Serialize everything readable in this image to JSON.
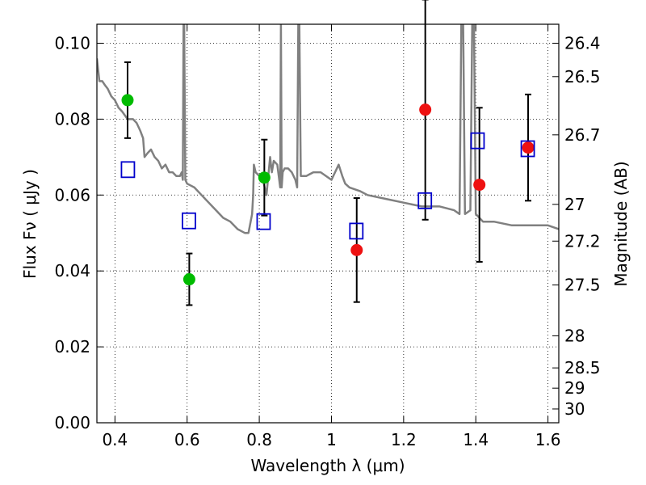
{
  "chart_data": {
    "type": "scatter",
    "xlabel": "Wavelength  λ (μm)",
    "ylabel_left": "Flux  Fν  ( μJy )",
    "ylabel_right": "Magnitude (AB)",
    "xlim": [
      0.35,
      1.63
    ],
    "ylim": [
      0.0,
      0.105
    ],
    "grid": true,
    "x_ticks": [
      0.4,
      0.6,
      0.8,
      1.0,
      1.2,
      1.4,
      1.6
    ],
    "x_tick_labels": [
      "0.4",
      "0.6",
      "0.8",
      "1",
      "1.2",
      "1.4",
      "1.6"
    ],
    "y_ticks": [
      0.0,
      0.02,
      0.04,
      0.06,
      0.08,
      0.1
    ],
    "y_tick_labels": [
      "0.00",
      "0.02",
      "0.04",
      "0.06",
      "0.08",
      "0.10"
    ],
    "right_ticks": [
      {
        "mag": 26.4,
        "label": "26.4"
      },
      {
        "mag": 26.5,
        "label": "26.5"
      },
      {
        "mag": 26.7,
        "label": "26.7"
      },
      {
        "mag": 27.0,
        "label": "27"
      },
      {
        "mag": 27.2,
        "label": "27.2"
      },
      {
        "mag": 27.5,
        "label": "27.5"
      },
      {
        "mag": 28.0,
        "label": "28"
      },
      {
        "mag": 28.5,
        "label": "28.5"
      },
      {
        "mag": 29.0,
        "label": "29"
      },
      {
        "mag": 30.0,
        "label": "30"
      }
    ],
    "series": [
      {
        "marker": "circle",
        "color": "#00bb00",
        "points": [
          {
            "x": 0.435,
            "y": 0.085,
            "err": 0.01
          },
          {
            "x": 0.606,
            "y": 0.0378,
            "err": 0.0068
          },
          {
            "x": 0.814,
            "y": 0.0646,
            "err": 0.01
          }
        ]
      },
      {
        "marker": "circle",
        "color": "#ee1111",
        "points": [
          {
            "x": 1.07,
            "y": 0.0455,
            "err": 0.0137
          },
          {
            "x": 1.26,
            "y": 0.0825,
            "err": 0.029
          },
          {
            "x": 1.41,
            "y": 0.0627,
            "err": 0.0203
          },
          {
            "x": 1.545,
            "y": 0.0725,
            "err": 0.014
          }
        ]
      },
      {
        "marker": "square-open",
        "color": "#0000cc",
        "points": [
          {
            "x": 0.436,
            "y": 0.0667
          },
          {
            "x": 0.605,
            "y": 0.0532
          },
          {
            "x": 0.812,
            "y": 0.053
          },
          {
            "x": 1.069,
            "y": 0.0505
          },
          {
            "x": 1.259,
            "y": 0.0585
          },
          {
            "x": 1.405,
            "y": 0.0743
          },
          {
            "x": 1.544,
            "y": 0.0722
          }
        ]
      },
      {
        "type": "line",
        "color": "#808080",
        "x": [
          0.35,
          0.357,
          0.365,
          0.372,
          0.38,
          0.39,
          0.4,
          0.41,
          0.42,
          0.435,
          0.45,
          0.46,
          0.47,
          0.478,
          0.482,
          0.49,
          0.5,
          0.51,
          0.52,
          0.53,
          0.54,
          0.55,
          0.56,
          0.57,
          0.58,
          0.585,
          0.588,
          0.59,
          0.592,
          0.595,
          0.6,
          0.62,
          0.64,
          0.66,
          0.68,
          0.7,
          0.72,
          0.74,
          0.76,
          0.77,
          0.78,
          0.783,
          0.785,
          0.79,
          0.8,
          0.81,
          0.82,
          0.83,
          0.835,
          0.84,
          0.85,
          0.858,
          0.86,
          0.862,
          0.865,
          0.87,
          0.88,
          0.89,
          0.9,
          0.905,
          0.908,
          0.911,
          0.915,
          0.93,
          0.95,
          0.97,
          1.0,
          1.02,
          1.03,
          1.038,
          1.05,
          1.08,
          1.1,
          1.15,
          1.2,
          1.25,
          1.3,
          1.34,
          1.355,
          1.36,
          1.365,
          1.37,
          1.385,
          1.39,
          1.395,
          1.4,
          1.42,
          1.45,
          1.5,
          1.55,
          1.58,
          1.6,
          1.63
        ],
        "y": [
          0.096,
          0.09,
          0.09,
          0.089,
          0.088,
          0.086,
          0.085,
          0.083,
          0.082,
          0.08,
          0.08,
          0.079,
          0.077,
          0.075,
          0.07,
          0.071,
          0.072,
          0.07,
          0.069,
          0.067,
          0.068,
          0.066,
          0.066,
          0.065,
          0.065,
          0.066,
          0.064,
          0.105,
          0.105,
          0.064,
          0.063,
          0.062,
          0.06,
          0.058,
          0.056,
          0.054,
          0.053,
          0.051,
          0.05,
          0.05,
          0.055,
          0.06,
          0.068,
          0.066,
          0.065,
          0.064,
          0.06,
          0.07,
          0.066,
          0.069,
          0.068,
          0.062,
          0.105,
          0.062,
          0.066,
          0.067,
          0.067,
          0.066,
          0.064,
          0.062,
          0.105,
          0.105,
          0.065,
          0.065,
          0.066,
          0.066,
          0.064,
          0.068,
          0.065,
          0.063,
          0.062,
          0.061,
          0.06,
          0.059,
          0.058,
          0.057,
          0.057,
          0.056,
          0.055,
          0.105,
          0.105,
          0.055,
          0.056,
          0.105,
          0.105,
          0.055,
          0.053,
          0.053,
          0.052,
          0.052,
          0.052,
          0.052,
          0.051
        ]
      }
    ]
  }
}
